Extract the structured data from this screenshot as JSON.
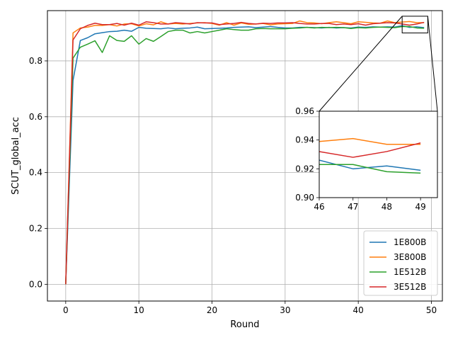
{
  "chart_data": [
    {
      "type": "line",
      "ylabel": "SCUT_global_acc",
      "xlabel": "Round",
      "xlim": [
        -2.5,
        51.5
      ],
      "ylim": [
        -0.06,
        0.98
      ],
      "xticks": [
        0,
        10,
        20,
        30,
        40,
        50
      ],
      "xtick_labels": [
        "0",
        "10",
        "20",
        "30",
        "40",
        "50"
      ],
      "yticks": [
        0.0,
        0.2,
        0.4,
        0.6,
        0.8
      ],
      "ytick_labels": [
        "0.0",
        "0.2",
        "0.4",
        "0.6",
        "0.8"
      ],
      "grid": true,
      "legend": "lower-right",
      "x": [
        0,
        1,
        2,
        3,
        4,
        5,
        6,
        7,
        8,
        9,
        10,
        11,
        12,
        13,
        14,
        15,
        16,
        17,
        18,
        19,
        20,
        21,
        22,
        23,
        24,
        25,
        26,
        27,
        28,
        29,
        30,
        31,
        32,
        33,
        34,
        35,
        36,
        37,
        38,
        39,
        40,
        41,
        42,
        43,
        44,
        45,
        46,
        47,
        48,
        49
      ],
      "series": [
        {
          "name": "1E800B",
          "color": "#1f77b4",
          "values": [
            0.0,
            0.73,
            0.873,
            0.883,
            0.897,
            0.901,
            0.905,
            0.906,
            0.91,
            0.906,
            0.92,
            0.917,
            0.916,
            0.915,
            0.918,
            0.915,
            0.917,
            0.918,
            0.921,
            0.915,
            0.916,
            0.917,
            0.918,
            0.92,
            0.921,
            0.922,
            0.919,
            0.921,
            0.923,
            0.92,
            0.918,
            0.918,
            0.92,
            0.92,
            0.919,
            0.918,
            0.92,
            0.918,
            0.919,
            0.918,
            0.921,
            0.92,
            0.922,
            0.921,
            0.922,
            0.921,
            0.926,
            0.92,
            0.922,
            0.919
          ]
        },
        {
          "name": "3E800B",
          "color": "#ff7f0e",
          "values": [
            0.0,
            0.9,
            0.918,
            0.921,
            0.927,
            0.927,
            0.93,
            0.925,
            0.932,
            0.933,
            0.925,
            0.933,
            0.929,
            0.94,
            0.932,
            0.934,
            0.932,
            0.934,
            0.936,
            0.937,
            0.934,
            0.928,
            0.937,
            0.928,
            0.936,
            0.931,
            0.932,
            0.934,
            0.929,
            0.932,
            0.933,
            0.934,
            0.943,
            0.937,
            0.936,
            0.933,
            0.937,
            0.94,
            0.937,
            0.933,
            0.94,
            0.938,
            0.936,
            0.935,
            0.943,
            0.937,
            0.939,
            0.941,
            0.937,
            0.937
          ]
        },
        {
          "name": "1E512B",
          "color": "#2ca02c",
          "values": [
            0.0,
            0.81,
            0.849,
            0.86,
            0.872,
            0.83,
            0.89,
            0.873,
            0.87,
            0.89,
            0.86,
            0.88,
            0.87,
            0.887,
            0.905,
            0.91,
            0.91,
            0.9,
            0.905,
            0.9,
            0.905,
            0.91,
            0.915,
            0.912,
            0.91,
            0.91,
            0.915,
            0.916,
            0.915,
            0.915,
            0.915,
            0.917,
            0.918,
            0.92,
            0.918,
            0.92,
            0.919,
            0.92,
            0.919,
            0.916,
            0.919,
            0.918,
            0.92,
            0.921,
            0.92,
            0.919,
            0.923,
            0.923,
            0.918,
            0.917
          ]
        },
        {
          "name": "3E512B",
          "color": "#d62728",
          "values": [
            0.0,
            0.875,
            0.915,
            0.927,
            0.935,
            0.93,
            0.93,
            0.934,
            0.928,
            0.935,
            0.928,
            0.94,
            0.937,
            0.932,
            0.932,
            0.937,
            0.935,
            0.932,
            0.937,
            0.936,
            0.936,
            0.93,
            0.932,
            0.934,
            0.938,
            0.934,
            0.932,
            0.935,
            0.934,
            0.936,
            0.936,
            0.937,
            0.934,
            0.932,
            0.932,
            0.934,
            0.934,
            0.93,
            0.932,
            0.93,
            0.933,
            0.928,
            0.933,
            0.935,
            0.937,
            0.936,
            0.932,
            0.928,
            0.932,
            0.938
          ]
        }
      ]
    },
    {
      "type": "line",
      "role": "inset",
      "xlim": [
        46,
        49.5
      ],
      "ylim": [
        0.9,
        0.96
      ],
      "xticks": [
        46,
        47,
        48,
        49
      ],
      "xtick_labels": [
        "46",
        "47",
        "48",
        "49"
      ],
      "yticks": [
        0.9,
        0.92,
        0.94,
        0.96
      ],
      "ytick_labels": [
        "0.90",
        "0.92",
        "0.94",
        "0.96"
      ],
      "grid": false
    }
  ]
}
